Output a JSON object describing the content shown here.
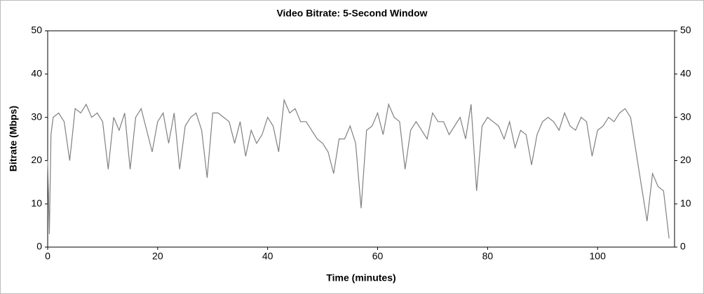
{
  "chart_data": {
    "type": "line",
    "title": "Video Bitrate: 5-Second Window",
    "xlabel": "Time (minutes)",
    "ylabel": "Bitrate (Mbps)",
    "x": [
      0,
      0.3,
      0.6,
      1,
      2,
      3,
      4,
      5,
      6,
      7,
      8,
      9,
      10,
      11,
      12,
      13,
      14,
      15,
      16,
      17,
      18,
      19,
      20,
      21,
      22,
      23,
      24,
      25,
      26,
      27,
      28,
      29,
      30,
      31,
      32,
      33,
      34,
      35,
      36,
      37,
      38,
      39,
      40,
      41,
      42,
      43,
      44,
      45,
      46,
      47,
      48,
      49,
      50,
      51,
      52,
      53,
      54,
      55,
      56,
      57,
      58,
      59,
      60,
      61,
      62,
      63,
      64,
      65,
      66,
      67,
      68,
      69,
      70,
      71,
      72,
      73,
      74,
      75,
      76,
      77,
      78,
      79,
      80,
      81,
      82,
      83,
      84,
      85,
      86,
      87,
      88,
      89,
      90,
      91,
      92,
      93,
      94,
      95,
      96,
      97,
      98,
      99,
      100,
      101,
      102,
      103,
      104,
      105,
      106,
      107,
      108,
      109,
      110,
      111,
      112,
      113
    ],
    "series": [
      {
        "name": "Bitrate",
        "color": "#808080",
        "values": [
          20,
          3,
          26,
          30,
          31,
          29,
          20,
          32,
          31,
          33,
          30,
          31,
          29,
          18,
          30,
          27,
          31,
          18,
          30,
          32,
          27,
          22,
          29,
          31,
          24,
          31,
          18,
          28,
          30,
          31,
          27,
          16,
          31,
          31,
          30,
          29,
          24,
          29,
          21,
          27,
          24,
          26,
          30,
          28,
          22,
          34,
          31,
          32,
          29,
          29,
          27,
          25,
          24,
          22,
          17,
          25,
          25,
          28,
          24,
          9,
          27,
          28,
          31,
          26,
          33,
          30,
          29,
          18,
          27,
          29,
          27,
          25,
          31,
          29,
          29,
          26,
          28,
          30,
          25,
          33,
          13,
          28,
          30,
          29,
          28,
          25,
          29,
          23,
          27,
          26,
          19,
          26,
          29,
          30,
          29,
          27,
          31,
          28,
          27,
          30,
          29,
          21,
          27,
          28,
          30,
          29,
          31,
          32,
          30,
          22,
          14,
          6,
          17,
          14,
          13,
          2
        ]
      }
    ],
    "xlim": [
      0,
      114
    ],
    "xticks": [
      0,
      20,
      40,
      60,
      80,
      100
    ],
    "ylim": [
      0,
      50
    ],
    "yticks": [
      0,
      10,
      20,
      30,
      40,
      50
    ],
    "y2lim": [
      0,
      50
    ],
    "y2ticks": [
      0,
      10,
      20,
      30,
      40,
      50
    ],
    "grid": false
  }
}
